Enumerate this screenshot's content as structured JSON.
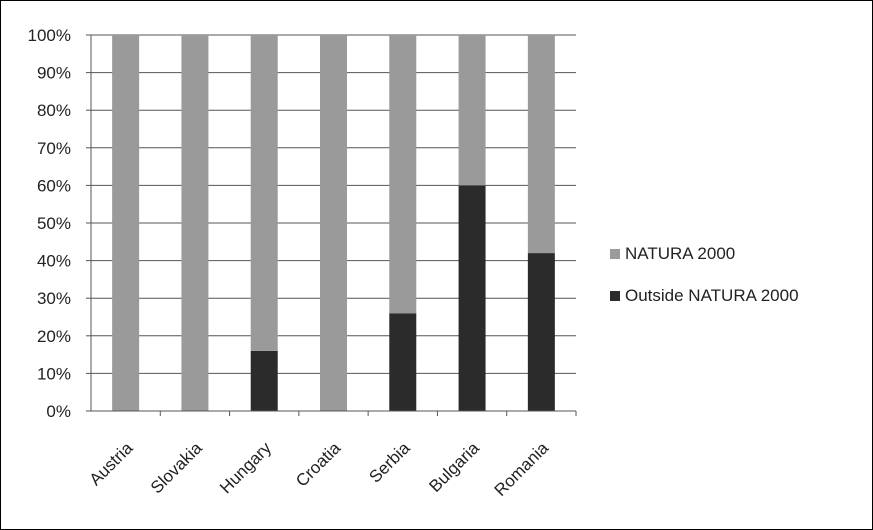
{
  "chart_data": {
    "type": "bar",
    "stacked": true,
    "percent_stacked": true,
    "categories": [
      "Austria",
      "Slovakia",
      "Hungary",
      "Croatia",
      "Serbia",
      "Bulgaria",
      "Romania"
    ],
    "series": [
      {
        "name": "Outside NATURA 2000",
        "values": [
          0,
          0,
          16,
          0,
          26,
          60,
          42
        ],
        "color": "#2b2b2b"
      },
      {
        "name": "NATURA 2000",
        "values": [
          100,
          100,
          84,
          100,
          74,
          40,
          58
        ],
        "color": "#9a9a9a"
      }
    ],
    "yticks": [
      "0%",
      "10%",
      "20%",
      "30%",
      "40%",
      "50%",
      "60%",
      "70%",
      "80%",
      "90%",
      "100%"
    ],
    "ylim": [
      0,
      100
    ],
    "grid": true,
    "legend_position": "right",
    "legend_order": [
      "NATURA 2000",
      "Outside NATURA 2000"
    ]
  }
}
